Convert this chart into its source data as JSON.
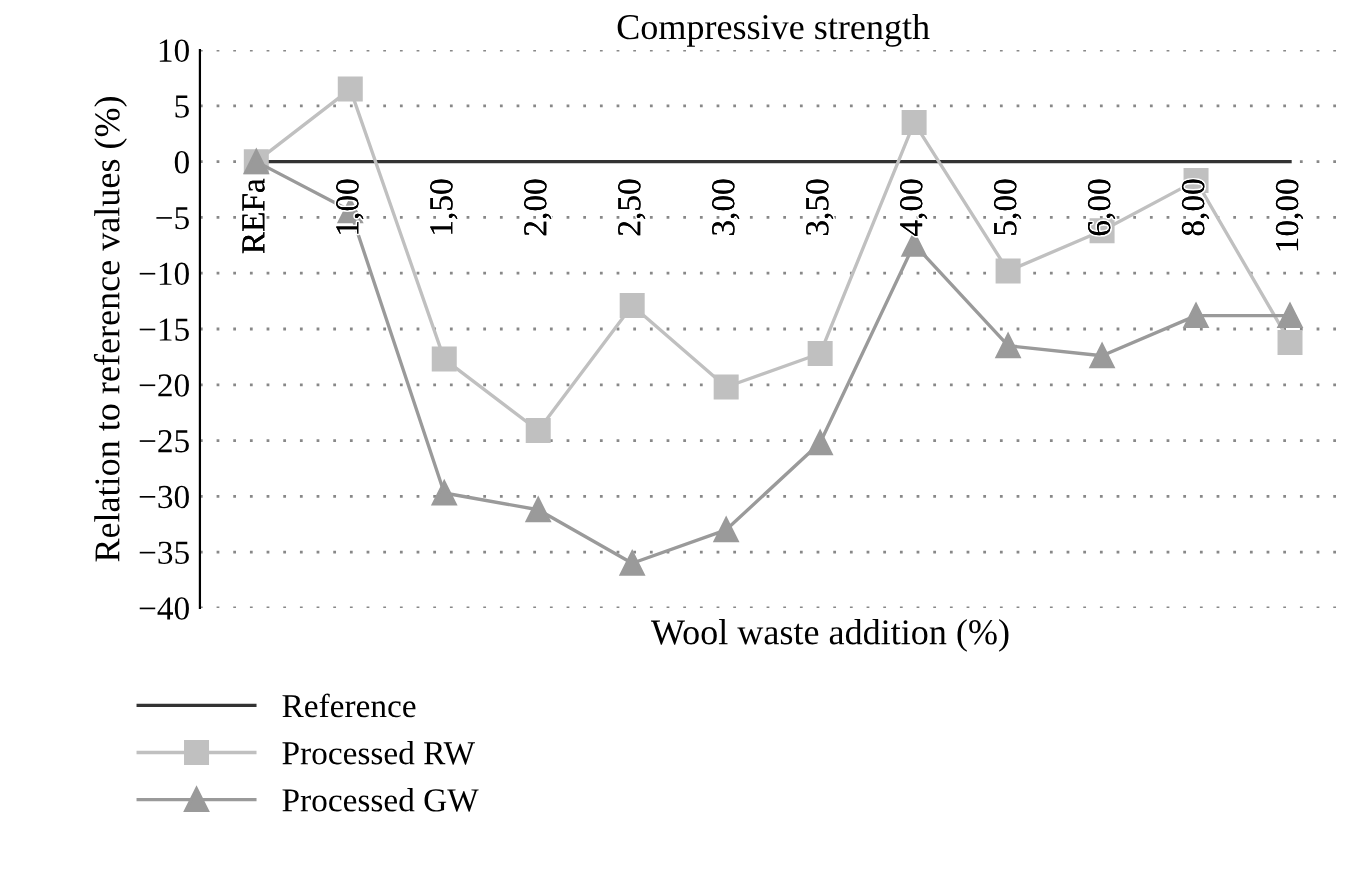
{
  "chart_data": {
    "type": "line",
    "title": "Compressive strength",
    "xlabel": "Wool waste addition (%)",
    "ylabel": "Relation to reference values (%)",
    "categories": [
      "REFa",
      "1,00",
      "1,50",
      "2,00",
      "2,50",
      "3,00",
      "3,50",
      "4,00",
      "5,00",
      "6,00",
      "8,00",
      "10,00"
    ],
    "series": [
      {
        "name": "Reference",
        "color": "#333333",
        "marker": "none",
        "values": [
          0,
          0,
          0,
          0,
          0,
          0,
          0,
          0,
          0,
          0,
          0,
          0
        ]
      },
      {
        "name": "Processed RW",
        "color": "#c0c0c0",
        "marker": "square",
        "values": [
          0,
          6.5,
          -17.7,
          -24.1,
          -12.9,
          -20.2,
          -17.2,
          3.5,
          -9.8,
          -6.2,
          -1.7,
          -16.2
        ]
      },
      {
        "name": "Processed GW",
        "color": "#9a9a9a",
        "marker": "triangle",
        "values": [
          0,
          -4.4,
          -29.7,
          -31.2,
          -36.0,
          -33.0,
          -25.2,
          -7.4,
          -16.5,
          -17.4,
          -13.8,
          -13.8
        ]
      }
    ],
    "ylim": [
      -40,
      10
    ],
    "yticks": [
      -40,
      -35,
      -30,
      -25,
      -20,
      -15,
      -10,
      -5,
      0,
      5,
      10
    ],
    "grid": "y",
    "legend": "bottom left"
  }
}
